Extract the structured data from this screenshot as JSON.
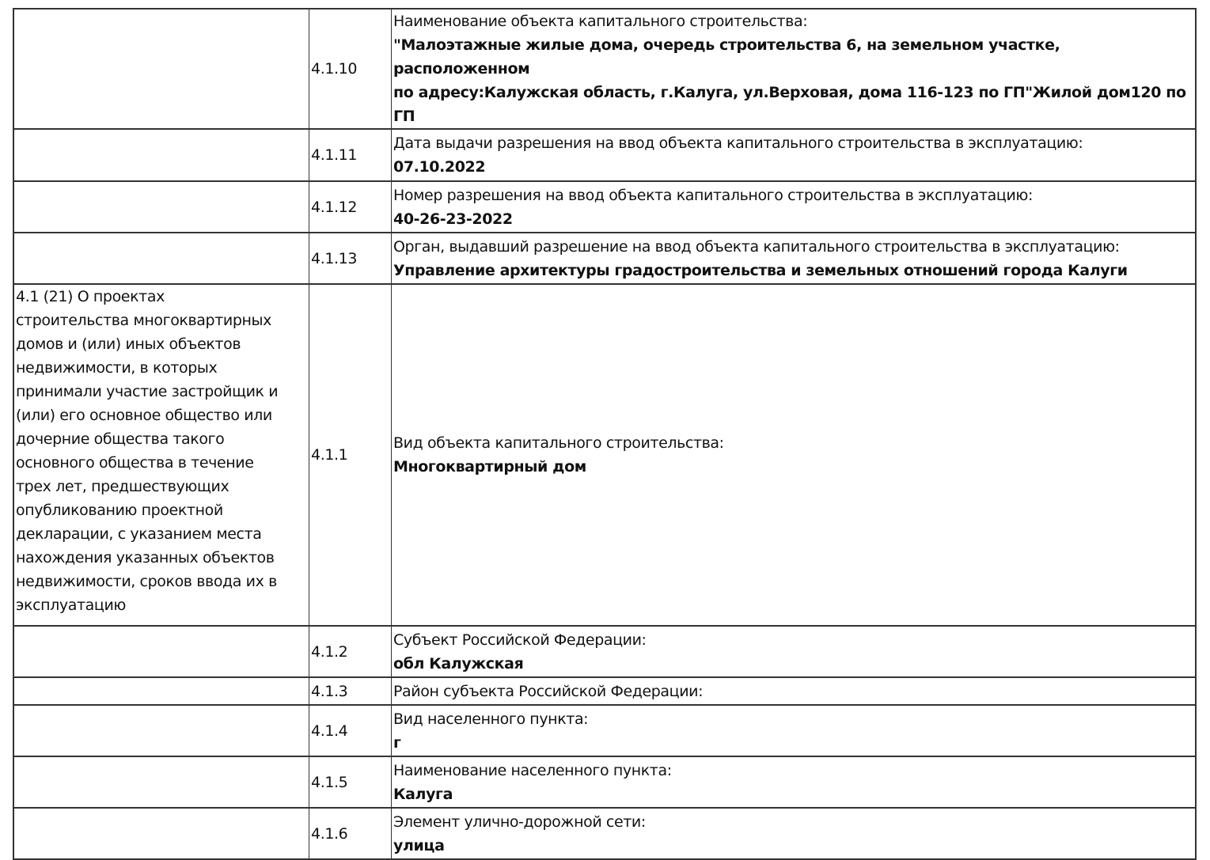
{
  "rows": [
    {
      "left": [],
      "code": "4.1.10",
      "label": "Наименование объекта капитального строительства:",
      "value": [
        "\"Малоэтажные жилые дома, очередь строительства 6, на земельном участке, расположенном",
        "по адресу:Калужская область, г.Калуга, ул.Верховая, дома 116-123 по ГП\"Жилой дом120 по",
        "ГП"
      ]
    },
    {
      "left": [],
      "code": "4.1.11",
      "label": "Дата выдачи разрешения на ввод объекта капитального строительства в эксплуатацию:",
      "value": [
        "07.10.2022"
      ]
    },
    {
      "left": [],
      "code": "4.1.12",
      "label": "Номер разрешения на ввод объекта капитального строительства в эксплуатацию:",
      "value": [
        "40-26-23-2022"
      ]
    },
    {
      "left": [],
      "code": "4.1.13",
      "label": "Орган, выдавший разрешение на ввод объекта капитального строительства в эксплуатацию:",
      "value": [
        "Управление архитектуры градостроительства и земельных отношений города Калуги"
      ]
    },
    {
      "left": [
        "4.1 (21) О проектах",
        "строительства многоквартирных",
        "домов и (или) иных объектов",
        "недвижимости, в которых",
        "принимали участие застройщик и",
        "(или) его основное общество или",
        "дочерние общества такого",
        "основного общества в течение",
        "трех лет, предшествующих",
        "опубликованию проектной",
        "декларации, с указанием места",
        "нахождения указанных объектов",
        "недвижимости, сроков ввода их в",
        "эксплуатацию"
      ],
      "code": "4.1.1",
      "label": "Вид объекта капитального строительства:",
      "value": [
        "Многоквартирный дом"
      ]
    },
    {
      "left": [],
      "code": "4.1.2",
      "label": "Субъект Российской Федерации:",
      "value": [
        "обл Калужская"
      ]
    },
    {
      "left": [],
      "code": "4.1.3",
      "label": "Район субъекта Российской Федерации:",
      "value": []
    },
    {
      "left": [],
      "code": "4.1.4",
      "label": "Вид населенного пункта:",
      "value": [
        "г"
      ]
    },
    {
      "left": [],
      "code": "4.1.5",
      "label": "Наименование населенного пункта:",
      "value": [
        "Калуга"
      ]
    },
    {
      "left": [],
      "code": "4.1.6",
      "label": "Элемент улично-дорожной сети:",
      "value": [
        "улица"
      ]
    }
  ]
}
